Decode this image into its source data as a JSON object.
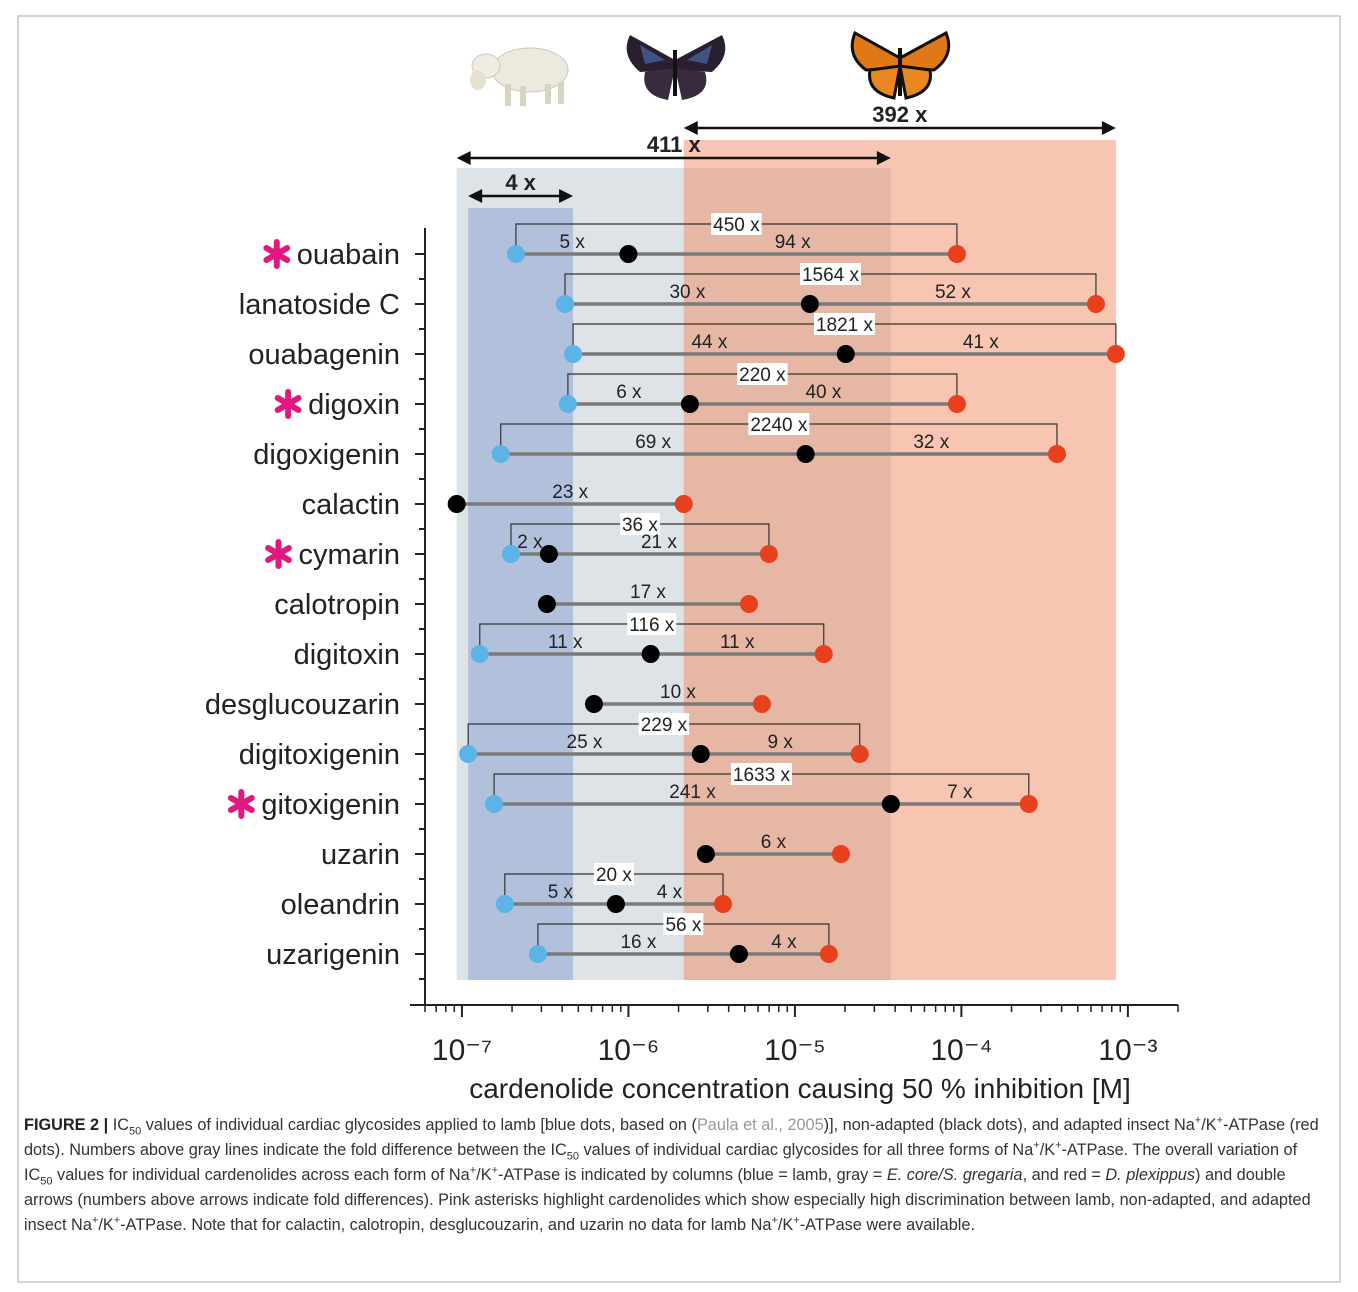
{
  "chart_data": {
    "type": "dotplot",
    "xlabel": "cardenolide concentration causing 50 % inhibition [M]",
    "xscale": "log",
    "xlim": [
      6e-08,
      0.002
    ],
    "xticks": [
      {
        "value": 1e-07,
        "label": "10⁻⁷"
      },
      {
        "value": 1e-06,
        "label": "10⁻⁶"
      },
      {
        "value": 1e-05,
        "label": "10⁻⁵"
      },
      {
        "value": 0.0001,
        "label": "10⁻⁴"
      },
      {
        "value": 0.001,
        "label": "10⁻³"
      }
    ],
    "minor_xticks": true,
    "categories": [
      "ouabain",
      "lanatoside C",
      "ouabagenin",
      "digoxin",
      "digoxigenin",
      "calactin",
      "cymarin",
      "calotropin",
      "digitoxin",
      "desglucouzarin",
      "digitoxigenin",
      "gitoxigenin",
      "uzarin",
      "oleandrin",
      "uzarigenin"
    ],
    "highlighted": [
      true,
      false,
      false,
      true,
      false,
      false,
      true,
      false,
      false,
      false,
      false,
      true,
      false,
      false,
      false
    ],
    "series": [
      {
        "color": "#5cb3e6",
        "values": [
          2.11e-07,
          4.16e-07,
          4.65e-07,
          4.33e-07,
          1.71e-07,
          null,
          1.97e-07,
          null,
          1.28e-07,
          null,
          1.09e-07,
          1.56e-07,
          null,
          1.81e-07,
          2.86e-07
        ]
      },
      {
        "color": "#000000",
        "values": [
          1e-06,
          1.23e-05,
          2.02e-05,
          2.34e-06,
          1.16e-05,
          9.3e-08,
          3.33e-07,
          3.24e-07,
          1.36e-06,
          6.21e-07,
          2.72e-06,
          3.77e-05,
          2.92e-06,
          8.41e-07,
          4.61e-06
        ]
      },
      {
        "color": "#e8401c",
        "values": [
          9.4e-05,
          0.000643,
          0.000847,
          9.4e-05,
          0.000375,
          2.15e-06,
          6.98e-06,
          5.3e-06,
          1.49e-05,
          6.34e-06,
          2.45e-05,
          0.000254,
          1.89e-05,
          3.7e-06,
          1.6e-05
        ]
      }
    ],
    "fold_left": [
      "5 x",
      "30 x",
      "44 x",
      "6 x",
      "69 x",
      null,
      "2 x",
      null,
      "11 x",
      null,
      "25 x",
      "241 x",
      null,
      "5 x",
      "16 x"
    ],
    "fold_right": [
      "94 x",
      "52 x",
      "41 x",
      "40 x",
      "32 x",
      "23 x",
      "21 x",
      "17 x",
      "11 x",
      "10 x",
      "9 x",
      "7 x",
      "6 x",
      "4 x",
      "4 x"
    ],
    "fold_total": [
      "450 x",
      "1564 x",
      "1821 x",
      "220 x",
      "2240 x",
      null,
      "36 x",
      null,
      "116 x",
      null,
      "229 x",
      "1633 x",
      null,
      "20 x",
      "56 x"
    ],
    "columns": [
      {
        "color": "#7f96cc",
        "range": [
          1.09e-07,
          4.65e-07
        ],
        "label": "4 x"
      },
      {
        "color": "#dde3e7",
        "range": [
          9.3e-08,
          3.77e-05
        ],
        "label": "411 x"
      },
      {
        "color": "#f08c63",
        "range": [
          2.15e-06,
          0.000847
        ],
        "label": "392 x"
      }
    ]
  },
  "caption": [
    "FIGURE 2 |",
    " IC",
    "50",
    " values of individual cardiac glycosides applied to lamb [blue dots, based on (",
    "Paula et al., 2005",
    ")], non-adapted (black dots), and adapted insect Na",
    "+",
    "/K",
    "+",
    "-ATPase (red dots). Numbers above gray lines indicate the fold difference between the IC",
    "50",
    " values of individual cardiac glycosides for all three forms of Na",
    "+",
    "/K",
    "+",
    "-ATPase. The overall variation of IC",
    "50",
    " values for individual cardenolides across each form of Na",
    "+",
    "/K",
    "+",
    "-ATPase is indicated by columns (blue = lamb, gray = ",
    "E. core/S. gregaria",
    ", and red = ",
    "D. plexippus",
    ") and double arrows (numbers above arrows indicate fold differences). Pink asterisks highlight cardenolides which show especially high discrimination between lamb, non-adapted, and adapted insect Na",
    "+",
    "/K",
    "+",
    "-ATPase. Note that for calactin, calotropin, desglucouzarin, and uzarin no data for lamb Na",
    "+",
    "/K",
    "+",
    "-ATPase were available."
  ]
}
